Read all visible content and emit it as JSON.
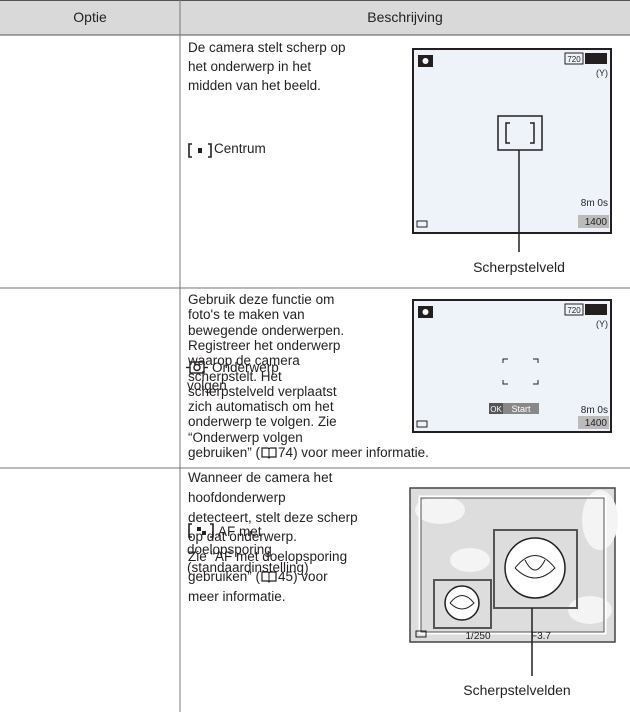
{
  "table": {
    "header": [
      "Optie",
      "Beschrijving"
    ],
    "rows": [
      {
        "option": [
          "Centrum"
        ],
        "description": [
          [
            "De camera stelt scherp op"
          ],
          [
            "het onderwerp in het"
          ],
          [
            "midden van het beeld."
          ]
        ],
        "screen": {
          "resolution": "720",
          "time": "8m 0s",
          "count": "1400"
        },
        "callout": "Scherpstelveld"
      },
      {
        "option": [
          "Onderwerp",
          "volgen"
        ],
        "description": [
          [
            "Gebruik deze functie om"
          ],
          [
            "foto's te maken van"
          ],
          [
            "bewegende onderwerpen."
          ],
          [
            "Registreer het onderwerp"
          ],
          [
            "waarop de camera"
          ],
          [
            "scherpstelt. Het"
          ],
          [
            "scherpstelveld verplaatst"
          ],
          [
            "zich automatisch om het"
          ],
          [
            "onderwerp te volgen. Zie"
          ],
          [
            "“Onderwerp volgen"
          ],
          [
            "gebruiken” (",
            "74) voor meer informatie."
          ]
        ],
        "screen": {
          "resolution": "720",
          "ok": "OK",
          "start": "Start",
          "time": "8m 0s",
          "count": "1400"
        }
      },
      {
        "option": [
          "AF met",
          "doelopsporing",
          "(standaardinstelling)"
        ],
        "description": [
          [
            "Wanneer de camera het"
          ],
          [
            "hoofdonderwerp"
          ],
          [
            "detecteert, stelt deze scherp"
          ],
          [
            "op dat onderwerp."
          ],
          [
            "Zie “AF met doelopsporing"
          ],
          [
            "gebruiken” (",
            "45) voor"
          ],
          [
            "meer informatie."
          ]
        ],
        "screen": {
          "shutter": "1/250",
          "aperture": "F3.7"
        },
        "callout": "Scherpstelvelden"
      }
    ]
  }
}
